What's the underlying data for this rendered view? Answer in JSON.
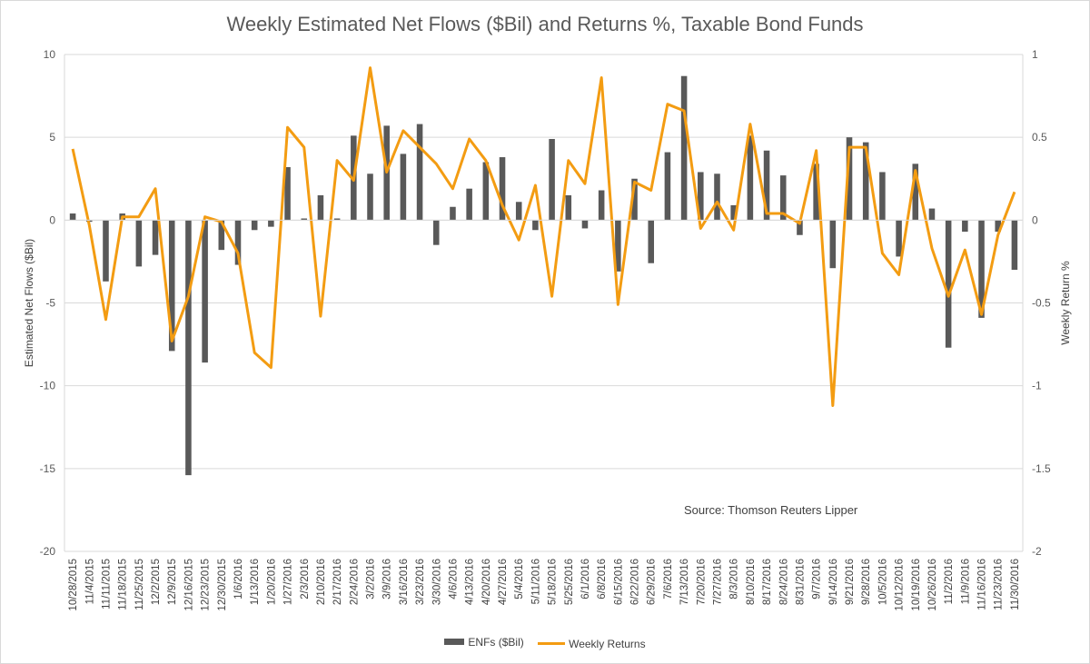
{
  "colors": {
    "bars": "#595959",
    "line": "#f39c12",
    "grid": "#d9d9d9",
    "text": "#595959"
  },
  "chart_data": {
    "type": "bar+line",
    "title": "Weekly Estimated Net Flows ($Bil) and Returns %, Taxable Bond Funds",
    "ylabel_left": "Estimated Net Flows ($Bil)",
    "ylabel_right": "Weekly Return %",
    "ylim_left": [
      -20,
      10
    ],
    "ylim_right": [
      -2,
      1
    ],
    "yticks_left": [
      "10",
      "5",
      "0",
      "-5",
      "-10",
      "-15",
      "-20"
    ],
    "yticks_right": [
      "1",
      "0.5",
      "0",
      "-0.5",
      "-1",
      "-1.5",
      "-2"
    ],
    "grid": true,
    "legend_position": "bottom",
    "annotation": "Source: Thomson Reuters Lipper",
    "categories": [
      "10/28/2015",
      "11/4/2015",
      "11/11/2015",
      "11/18/2015",
      "11/25/2015",
      "12/2/2015",
      "12/9/2015",
      "12/16/2015",
      "12/23/2015",
      "12/30/2015",
      "1/6/2016",
      "1/13/2016",
      "1/20/2016",
      "1/27/2016",
      "2/3/2016",
      "2/10/2016",
      "2/17/2016",
      "2/24/2016",
      "3/2/2016",
      "3/9/2016",
      "3/16/2016",
      "3/23/2016",
      "3/30/2016",
      "4/6/2016",
      "4/13/2016",
      "4/20/2016",
      "4/27/2016",
      "5/4/2016",
      "5/11/2016",
      "5/18/2016",
      "5/25/2016",
      "6/1/2016",
      "6/8/2016",
      "6/15/2016",
      "6/22/2016",
      "6/29/2016",
      "7/6/2016",
      "7/13/2016",
      "7/20/2016",
      "7/27/2016",
      "8/3/2016",
      "8/10/2016",
      "8/17/2016",
      "8/24/2016",
      "8/31/2016",
      "9/7/2016",
      "9/14/2016",
      "9/21/2016",
      "9/28/2016",
      "10/5/2016",
      "10/12/2016",
      "10/19/2016",
      "10/26/2016",
      "11/2/2016",
      "11/9/2016",
      "11/16/2016",
      "11/23/2016",
      "11/30/2016"
    ],
    "series": [
      {
        "name": "ENFs ($Bil)",
        "type": "bar",
        "axis": "left",
        "values": [
          0.4,
          -0.1,
          -3.7,
          0.4,
          -2.8,
          -2.1,
          -7.9,
          -15.4,
          -8.6,
          -1.8,
          -2.7,
          -0.6,
          -0.4,
          3.2,
          0.1,
          1.5,
          0.1,
          5.1,
          2.8,
          5.7,
          4.0,
          5.8,
          -1.5,
          0.8,
          1.9,
          3.5,
          3.8,
          1.1,
          -0.6,
          4.9,
          1.5,
          -0.5,
          1.8,
          -3.1,
          2.5,
          -2.6,
          4.1,
          8.7,
          2.9,
          2.8,
          0.9,
          5.1,
          4.2,
          2.7,
          -0.9,
          3.4,
          -2.9,
          5.0,
          4.7,
          2.9,
          -2.2,
          3.4,
          0.7,
          -7.7,
          -0.7,
          -5.9,
          -0.7,
          -3.0
        ]
      },
      {
        "name": "Weekly Returns",
        "type": "line",
        "axis": "right",
        "values": [
          0.43,
          -0.03,
          -0.6,
          0.02,
          0.02,
          0.19,
          -0.73,
          -0.46,
          0.02,
          -0.01,
          -0.2,
          -0.8,
          -0.89,
          0.56,
          0.44,
          -0.58,
          0.36,
          0.24,
          0.92,
          0.29,
          0.54,
          0.44,
          0.34,
          0.19,
          0.49,
          0.36,
          0.09,
          -0.12,
          0.21,
          -0.46,
          0.36,
          0.22,
          0.86,
          -0.51,
          0.23,
          0.18,
          0.7,
          0.66,
          -0.05,
          0.11,
          -0.06,
          0.58,
          0.04,
          0.04,
          -0.02,
          0.42,
          -1.12,
          0.44,
          0.44,
          -0.2,
          -0.33,
          0.3,
          -0.17,
          -0.46,
          -0.18,
          -0.57,
          -0.09,
          0.17
        ]
      }
    ]
  }
}
